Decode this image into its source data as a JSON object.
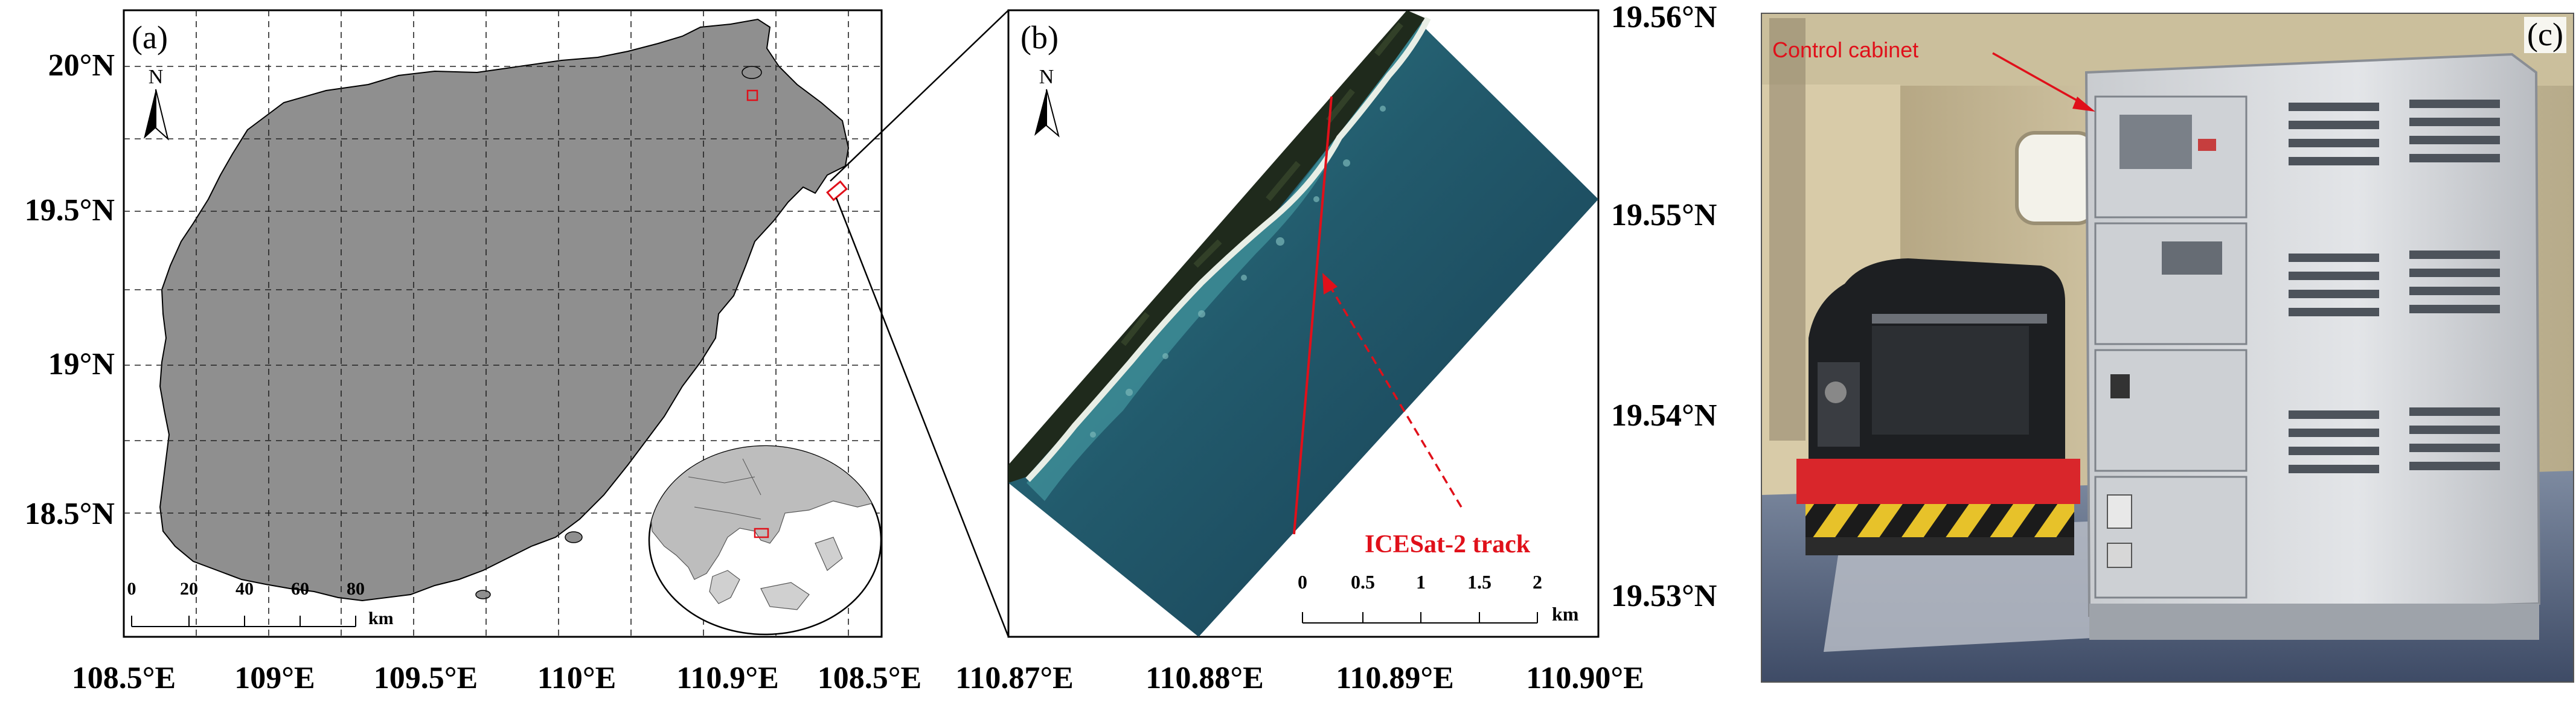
{
  "panels": {
    "a": {
      "label": "(a)",
      "lat_labels": [
        "20°N",
        "19.5°N",
        "19°N",
        "18.5°N"
      ],
      "lon_labels": [
        "108.5°E",
        "109°E",
        "109.5°E",
        "110°E",
        "110.9°E",
        "108.5°E"
      ],
      "north_letter": "N",
      "scale_ticks": [
        "0",
        "20",
        "40",
        "60",
        "80"
      ],
      "scale_unit": "km"
    },
    "b": {
      "label": "(b)",
      "lat_labels": [
        "19.56°N",
        "19.55°N",
        "19.54°N",
        "19.53°N"
      ],
      "lon_labels": [
        "110.87°E",
        "110.88°E",
        "110.89°E",
        "110.90°E"
      ],
      "north_letter": "N",
      "scale_ticks": [
        "0",
        "0.5",
        "1",
        "1.5",
        "2"
      ],
      "scale_unit": "km",
      "track_label": "ICESat-2 track"
    },
    "c": {
      "label": "(c)",
      "annotation": "Control cabinet"
    }
  },
  "colors": {
    "land": "#8f8f8f",
    "accent_red": "#e0101a",
    "frame": "#000000",
    "sea_deep": "#1d4a60",
    "sea_shallow": "#3f8f98",
    "beach": "#e8eee6",
    "vegetation": "#1f2a1c"
  }
}
